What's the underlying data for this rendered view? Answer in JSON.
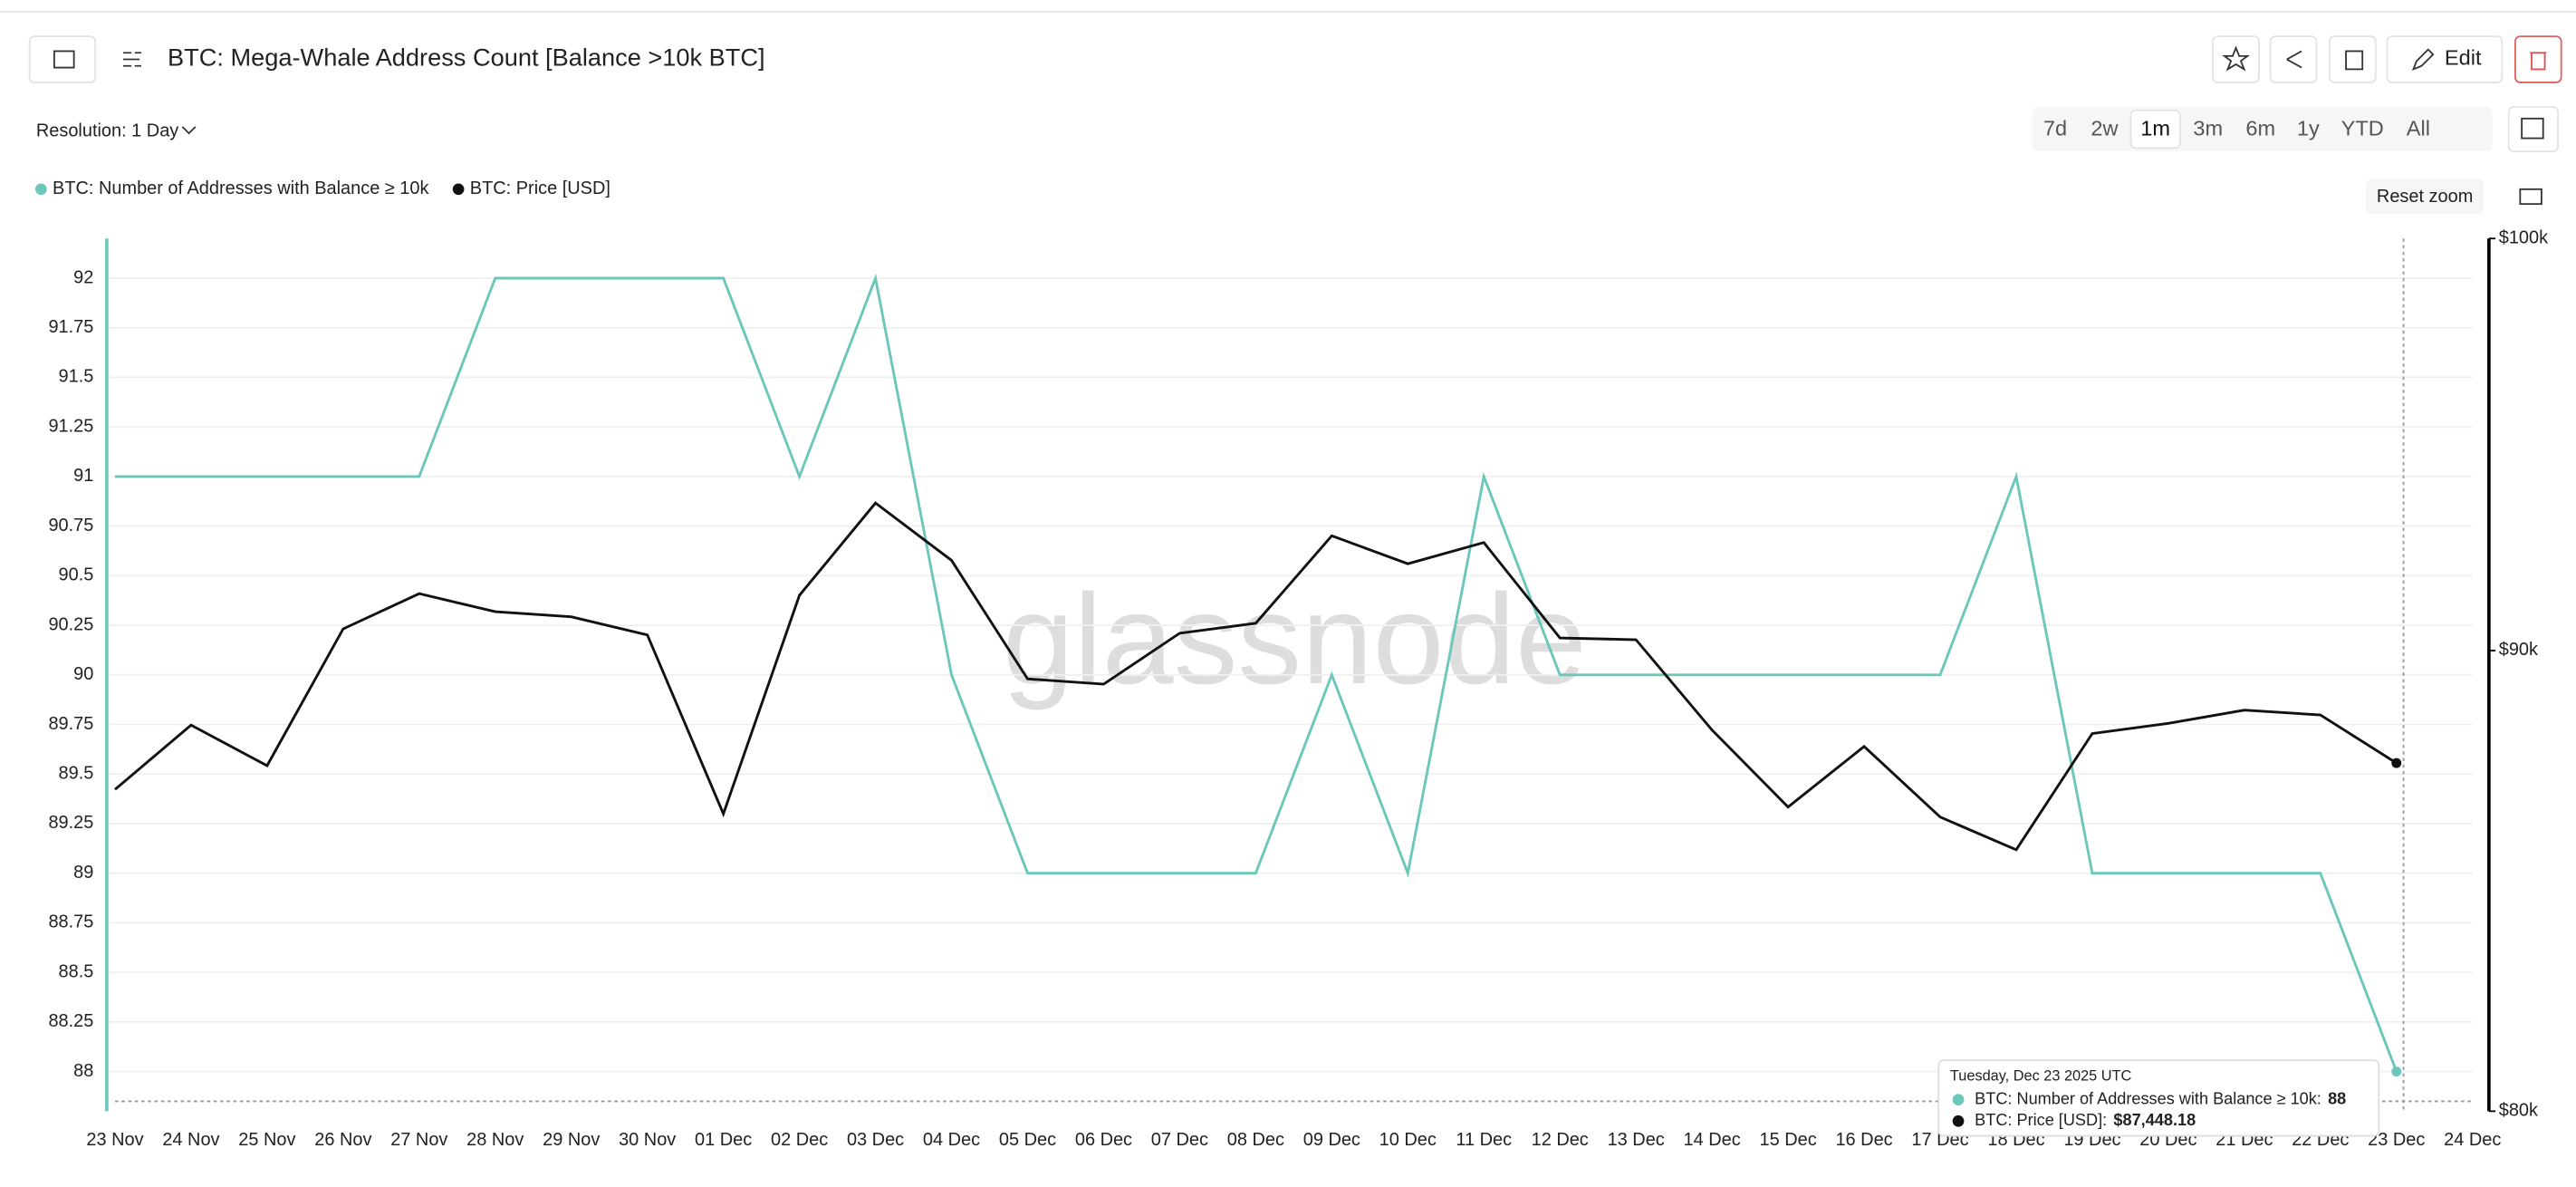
{
  "header": {
    "title": "BTC: Mega-Whale Address Count [Balance >10k BTC]",
    "edit": "Edit",
    "resolution": "Resolution: 1 Day",
    "ranges": [
      "7d",
      "2w",
      "1m",
      "3m",
      "6m",
      "1y",
      "YTD",
      "All"
    ],
    "reset_zoom": "Reset zoom",
    "watermark": "glassnode"
  },
  "tooltip": {
    "date": "Tuesday, Dec 23 2025 UTC",
    "rows": [
      {
        "label": "BTC: Number of Addresses with Balance ≥ 10k:",
        "value": "88"
      },
      {
        "label": "BTC: Price [USD]:",
        "value": "$87,448.18"
      }
    ]
  },
  "chart_data": {
    "type": "line",
    "categories": [
      "23 Nov",
      "24 Nov",
      "25 Nov",
      "26 Nov",
      "27 Nov",
      "28 Nov",
      "29 Nov",
      "30 Nov",
      "01 Dec",
      "02 Dec",
      "03 Dec",
      "04 Dec",
      "05 Dec",
      "06 Dec",
      "07 Dec",
      "08 Dec",
      "09 Dec",
      "10 Dec",
      "11 Dec",
      "12 Dec",
      "13 Dec",
      "14 Dec",
      "15 Dec",
      "16 Dec",
      "17 Dec",
      "18 Dec",
      "19 Dec",
      "20 Dec",
      "21 Dec",
      "22 Dec",
      "23 Dec",
      "24 Dec"
    ],
    "series": [
      {
        "name": "BTC: Number of Addresses with Balance ≥ 10k",
        "color": "#6cc7bb",
        "values": [
          91,
          91,
          91,
          91,
          91,
          92,
          92,
          92,
          92,
          91,
          92,
          90,
          89,
          89,
          89,
          89,
          90,
          89,
          91,
          90,
          90,
          90,
          90,
          90,
          90,
          91,
          89,
          89,
          89,
          89,
          88,
          null
        ]
      },
      {
        "name": "BTC: Price [USD]",
        "color": "#111111",
        "axis": "y2",
        "values": [
          86860,
          88300,
          87390,
          90500,
          91320,
          90900,
          90780,
          90360,
          86320,
          91280,
          93460,
          92100,
          89350,
          89230,
          90400,
          90630,
          92680,
          92020,
          92520,
          90290,
          90250,
          88190,
          86470,
          87820,
          86250,
          85530,
          88110,
          88340,
          88640,
          88530,
          87448.18,
          null
        ]
      }
    ],
    "ylim": [
      87.8,
      92.2
    ],
    "yticks": [
      88,
      88.25,
      88.5,
      88.75,
      89,
      89.25,
      89.5,
      89.75,
      90,
      90.25,
      90.5,
      90.75,
      91,
      91.25,
      91.5,
      91.75,
      92
    ],
    "y2lim": [
      80000,
      100000
    ],
    "y2log": true,
    "y2ticks": [
      {
        "value": 80000,
        "label": "$80k"
      },
      {
        "value": 90000,
        "label": "$90k"
      },
      {
        "value": 100000,
        "label": "$100k"
      }
    ],
    "grid": true
  }
}
